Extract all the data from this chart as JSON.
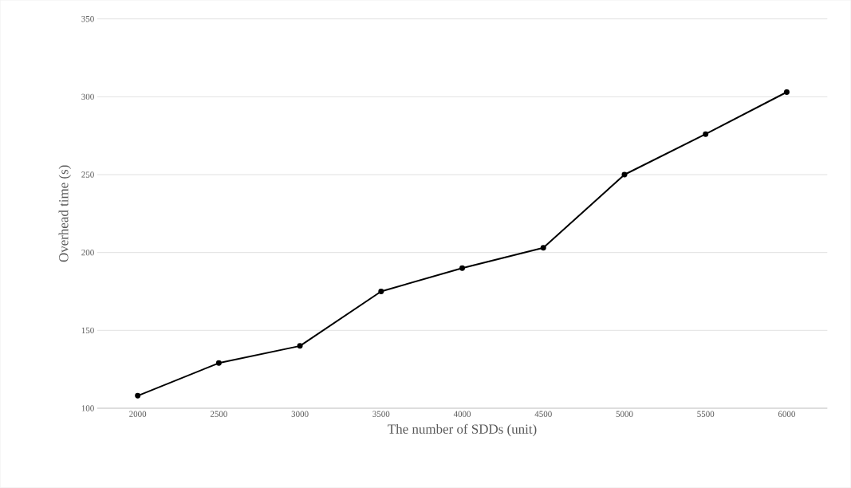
{
  "chart_data": {
    "type": "line",
    "xlabel": "The number of SDDs (unit)",
    "ylabel": "Overhead time (s)",
    "categories": [
      "2000",
      "2500",
      "3000",
      "3500",
      "4000",
      "4500",
      "5000",
      "5500",
      "6000"
    ],
    "values": [
      108,
      129,
      140,
      175,
      190,
      203,
      250,
      276,
      303
    ],
    "color": "#000000",
    "marker": "circle",
    "line_style": "solid",
    "ylim": [
      100,
      350
    ],
    "yticks": [
      100,
      150,
      200,
      250,
      300,
      350
    ],
    "grid": "y"
  }
}
